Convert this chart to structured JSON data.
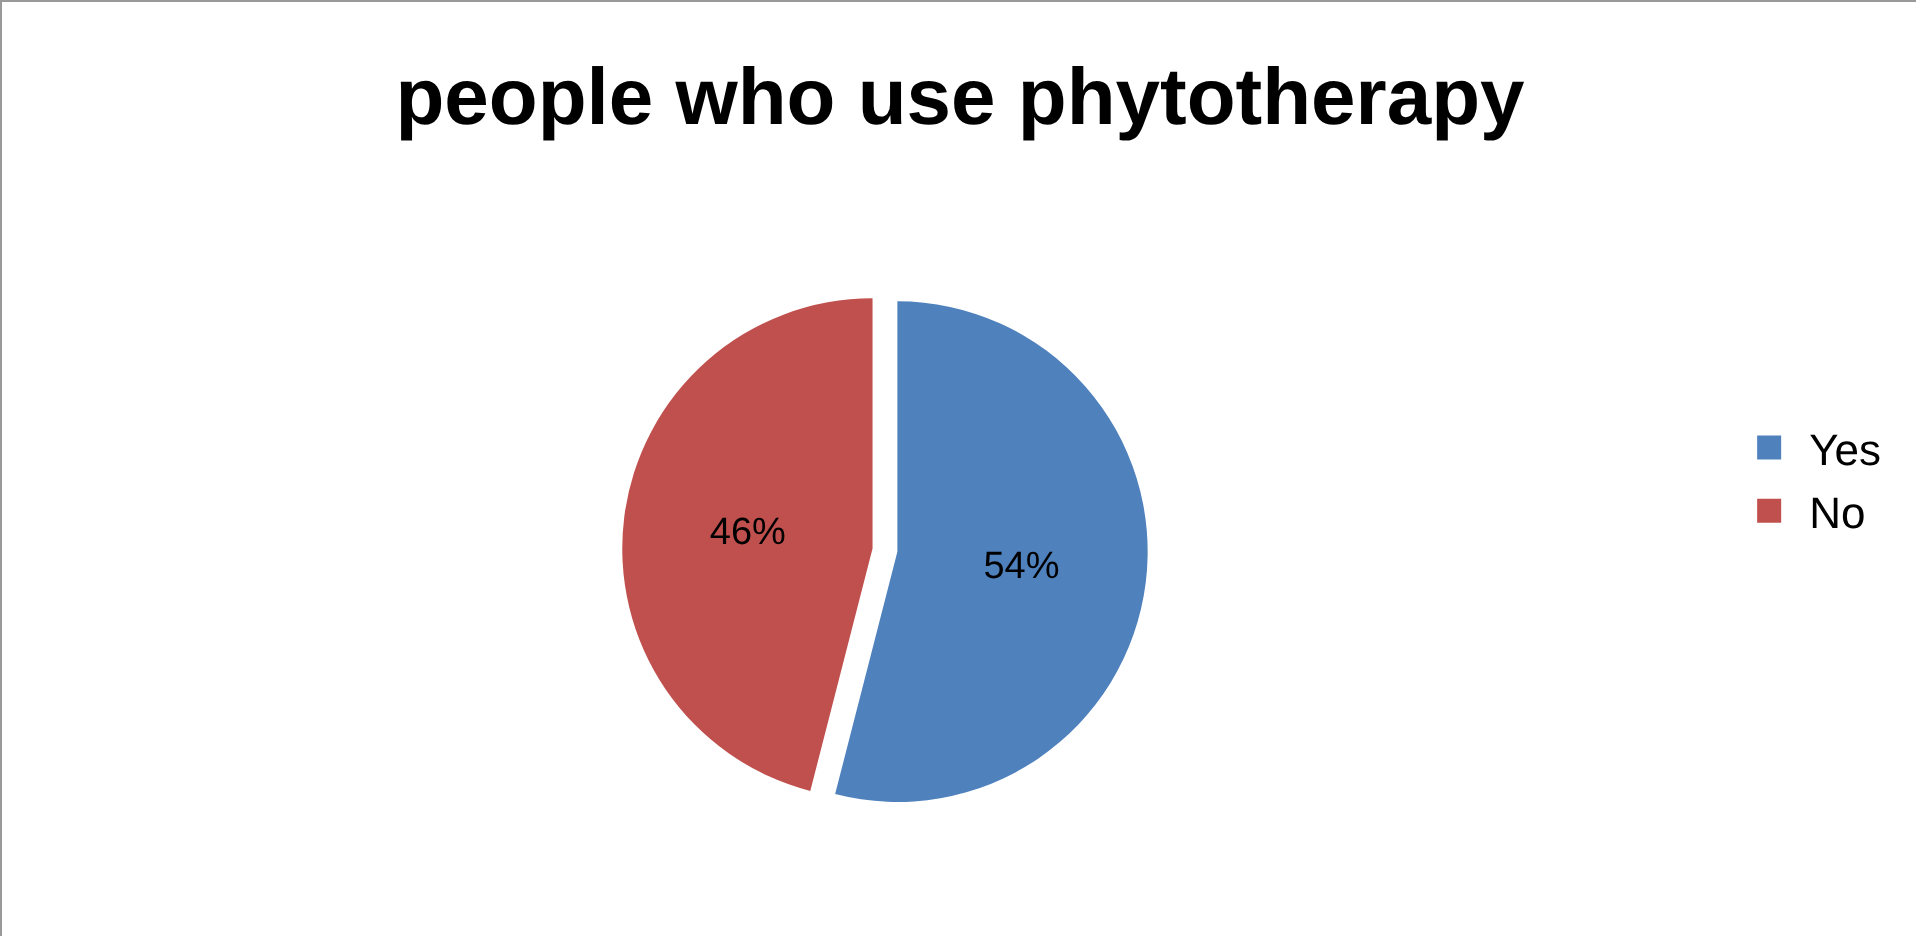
{
  "chart_data": {
    "type": "pie",
    "title": "people who use phytotherapy",
    "categories": [
      "Yes",
      "No"
    ],
    "values": [
      54,
      46
    ],
    "colors": [
      "#4f81bd",
      "#c0504d"
    ],
    "value_labels": [
      "54%",
      "46%"
    ],
    "legend": "right"
  }
}
